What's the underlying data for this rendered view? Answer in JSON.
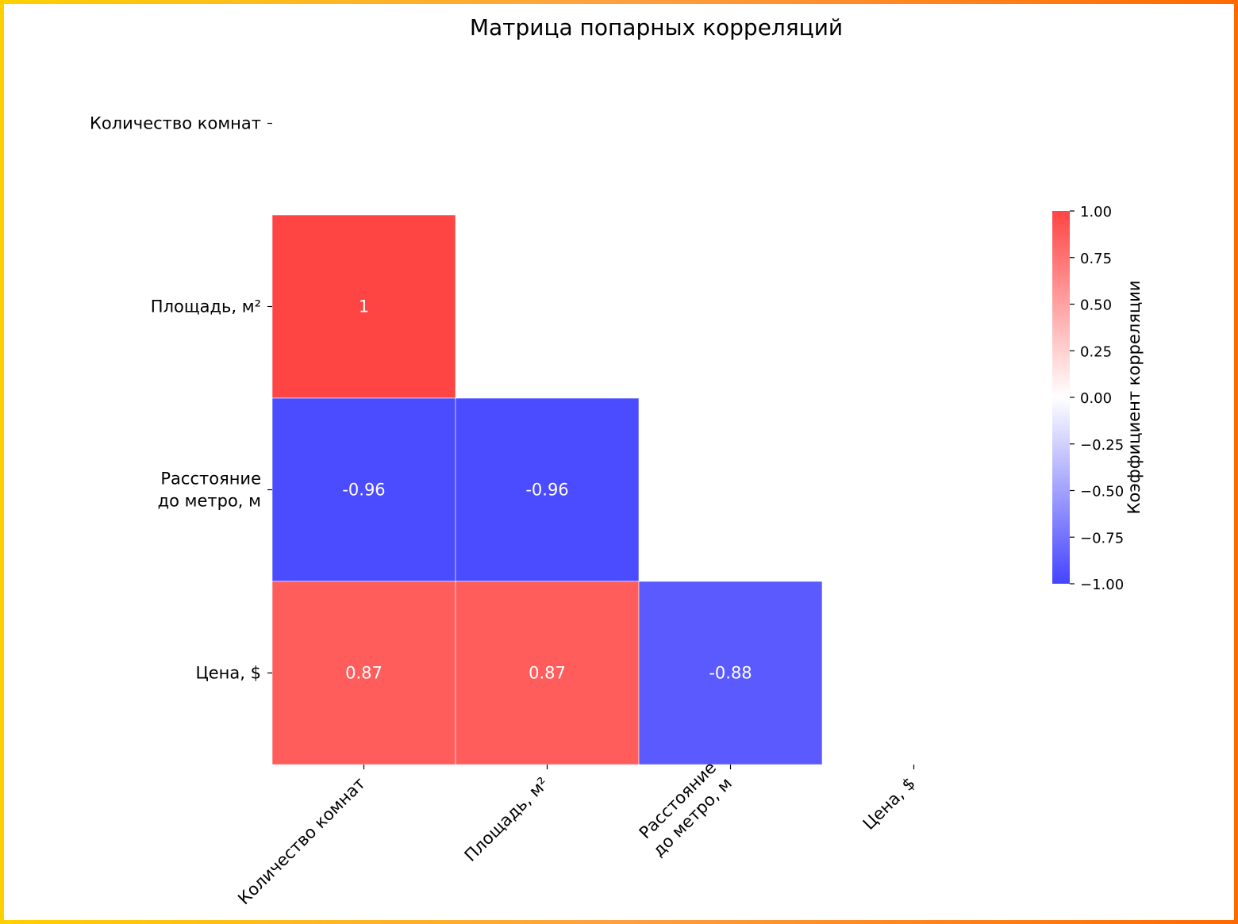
{
  "chart_data": {
    "type": "heatmap",
    "title": "Матрица попарных корреляций",
    "row_labels": [
      [
        "Количество комнат"
      ],
      [
        "Площадь, м²"
      ],
      [
        "Расстояние",
        "до метро, м"
      ],
      [
        "Цена, $"
      ]
    ],
    "col_labels": [
      [
        "Количество комнат"
      ],
      [
        "Площадь, м²"
      ],
      [
        "Расстояние",
        "до метро, м"
      ],
      [
        "Цена, $"
      ]
    ],
    "mask": "upper triangle including diagonal",
    "cells": [
      {
        "row": 1,
        "col": 0,
        "value": 1,
        "label": "1"
      },
      {
        "row": 2,
        "col": 0,
        "value": -0.96,
        "label": "-0.96"
      },
      {
        "row": 2,
        "col": 1,
        "value": -0.96,
        "label": "-0.96"
      },
      {
        "row": 3,
        "col": 0,
        "value": 0.87,
        "label": "0.87"
      },
      {
        "row": 3,
        "col": 1,
        "value": 0.87,
        "label": "0.87"
      },
      {
        "row": 3,
        "col": 2,
        "value": -0.88,
        "label": "-0.88"
      }
    ],
    "colorbar": {
      "label": "Коэффициент корреляции",
      "range": [
        -1,
        1
      ],
      "ticks": [
        "1.00",
        "0.75",
        "0.50",
        "0.25",
        "0.00",
        "−0.25",
        "−0.50",
        "−0.75",
        "−1.00"
      ],
      "tick_values": [
        1,
        0.75,
        0.5,
        0.25,
        0,
        -0.25,
        -0.5,
        -0.75,
        -1
      ],
      "color_min": "#4444ff",
      "color_mid": "#ffffff",
      "color_max": "#ff4444"
    }
  }
}
